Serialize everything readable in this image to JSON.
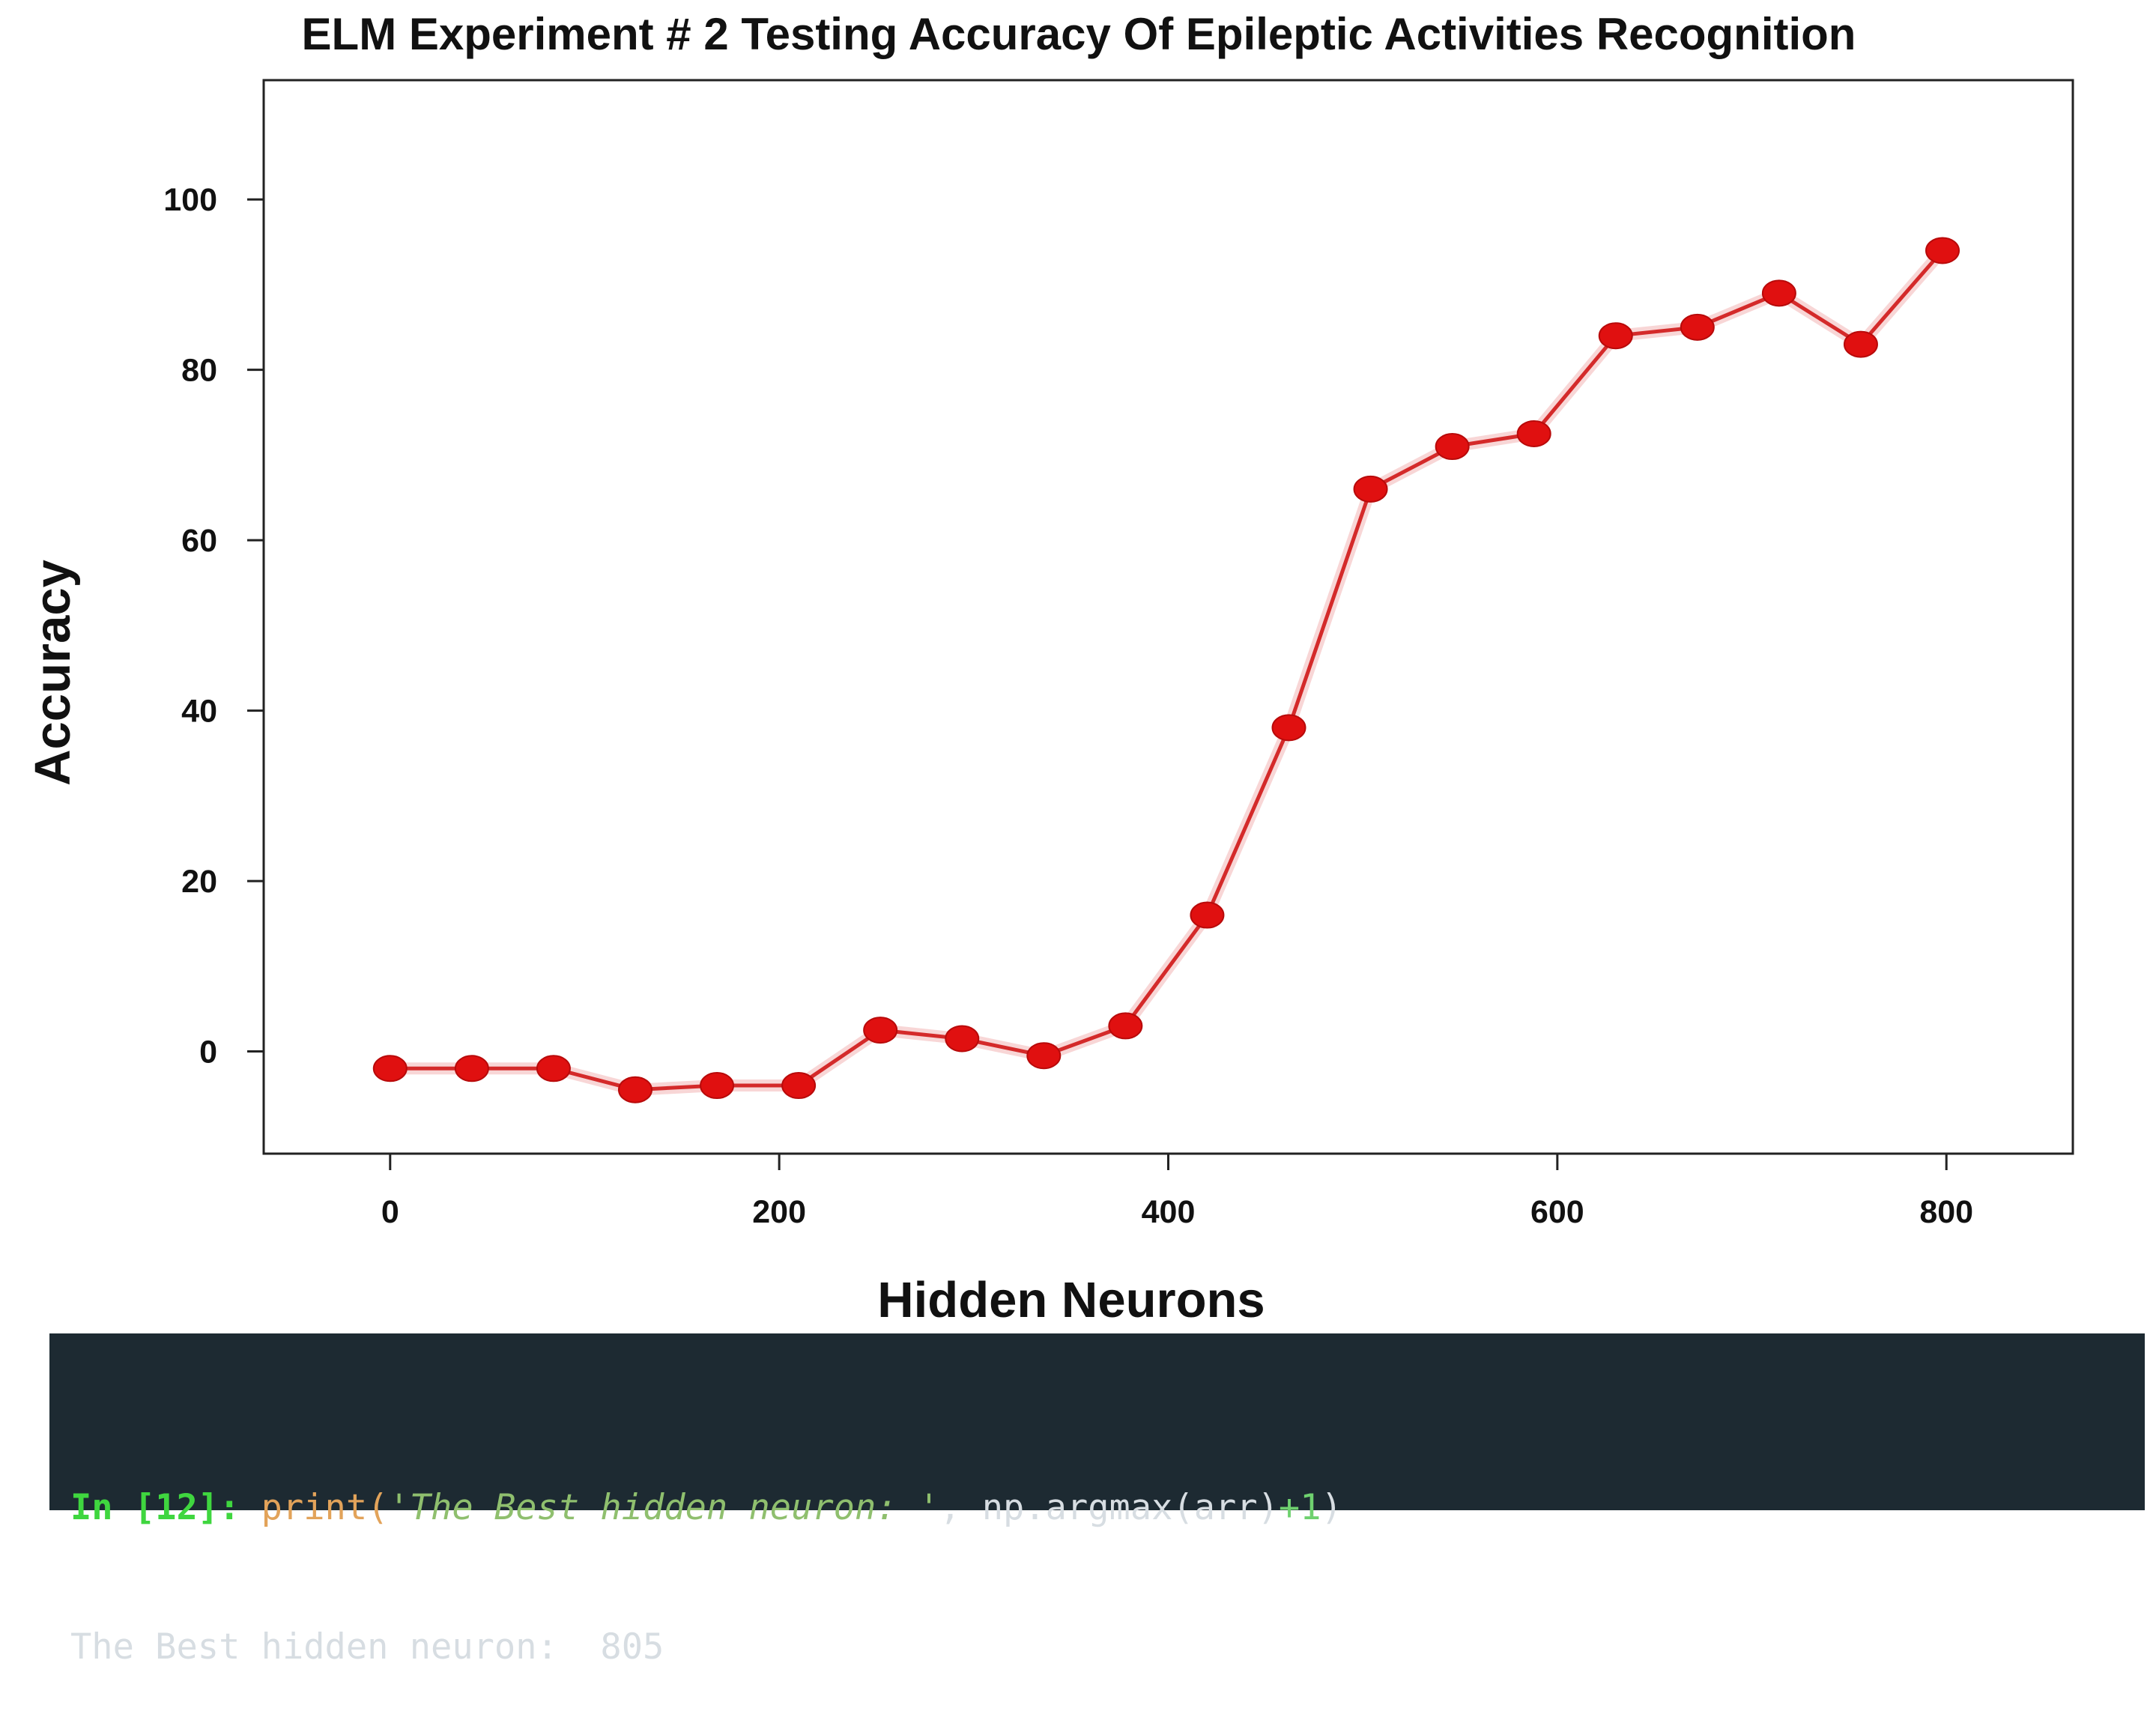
{
  "chart_data": {
    "type": "line",
    "title": "ELM Experiment # 2 Testing Accuracy Of Epileptic Activities Recognition",
    "xlabel": "Hidden Neurons",
    "ylabel": "Accuracy",
    "xlim": [
      -65,
      865
    ],
    "ylim": [
      -12,
      114
    ],
    "x_ticks": [
      "0",
      "200",
      "400",
      "600",
      "800"
    ],
    "y_ticks": [
      "0",
      "20",
      "40",
      "60",
      "80",
      "100"
    ],
    "grid": false,
    "legend": "none",
    "colors": {
      "line": "#d42a2a",
      "marker": "#e01010"
    },
    "series": [
      {
        "x": [
          0,
          42,
          84,
          126,
          168,
          210,
          252,
          294,
          336,
          378,
          420,
          462,
          504,
          546,
          588,
          630,
          672,
          714,
          756,
          798
        ],
        "y": [
          -2,
          -2,
          -2,
          -4.5,
          -4,
          -4,
          2.5,
          1.5,
          -0.5,
          3,
          16,
          38,
          66,
          71,
          72.5,
          84,
          85,
          89,
          83,
          94
        ]
      }
    ]
  },
  "console": {
    "prompt": "In [12]: ",
    "code_func": "print(",
    "code_string": "'The Best hidden neuron: '",
    "code_mid": ", np.argmax(arr)",
    "code_op": "+",
    "code_num": "1",
    "code_close": ")",
    "output": "The Best hidden neuron:  805"
  }
}
